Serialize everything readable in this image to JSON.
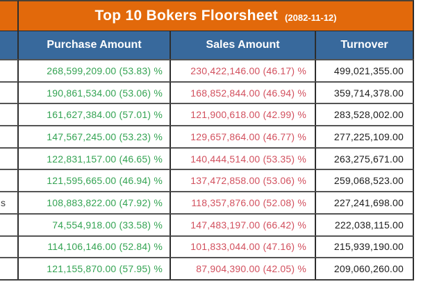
{
  "title": {
    "text": "Top 10 Bokers Floorsheet",
    "date": "(2082-11-12)"
  },
  "columns": {
    "broker": "",
    "purchase": "Purchase Amount",
    "sales": "Sales Amount",
    "turnover": "Turnover"
  },
  "colors": {
    "title_bar_orange": "#E2690B",
    "header_blue": "#38699C",
    "purchase_green": "#33A352",
    "sales_red": "#D2505E",
    "turnover_text": "#1B1B1B"
  },
  "rows": [
    {
      "broker_fragment": "",
      "purchase": "268,599,209.00 (53.83) %",
      "sales": "230,422,146.00 (46.17) %",
      "turnover": "499,021,355.00"
    },
    {
      "broker_fragment": "",
      "purchase": "190,861,534.00 (53.06) %",
      "sales": "168,852,844.00 (46.94) %",
      "turnover": "359,714,378.00"
    },
    {
      "broker_fragment": "",
      "purchase": "161,627,384.00 (57.01) %",
      "sales": "121,900,618.00 (42.99) %",
      "turnover": "283,528,002.00"
    },
    {
      "broker_fragment": "",
      "purchase": "147,567,245.00 (53.23) %",
      "sales": "129,657,864.00 (46.77) %",
      "turnover": "277,225,109.00"
    },
    {
      "broker_fragment": "",
      "purchase": "122,831,157.00 (46.65) %",
      "sales": "140,444,514.00 (53.35) %",
      "turnover": "263,275,671.00"
    },
    {
      "broker_fragment": "",
      "purchase": "121,595,665.00 (46.94) %",
      "sales": "137,472,858.00 (53.06) %",
      "turnover": "259,068,523.00"
    },
    {
      "broker_fragment": "s",
      "purchase": "108,883,822.00 (47.92) %",
      "sales": "118,357,876.00 (52.08) %",
      "turnover": "227,241,698.00"
    },
    {
      "broker_fragment": "",
      "purchase": "74,554,918.00 (33.58) %",
      "sales": "147,483,197.00 (66.42) %",
      "turnover": "222,038,115.00"
    },
    {
      "broker_fragment": "",
      "purchase": "114,106,146.00 (52.84) %",
      "sales": "101,833,044.00 (47.16) %",
      "turnover": "215,939,190.00"
    },
    {
      "broker_fragment": "",
      "purchase": "121,155,870.00 (57.95) %",
      "sales": "87,904,390.00 (42.05) %",
      "turnover": "209,060,260.00"
    }
  ]
}
